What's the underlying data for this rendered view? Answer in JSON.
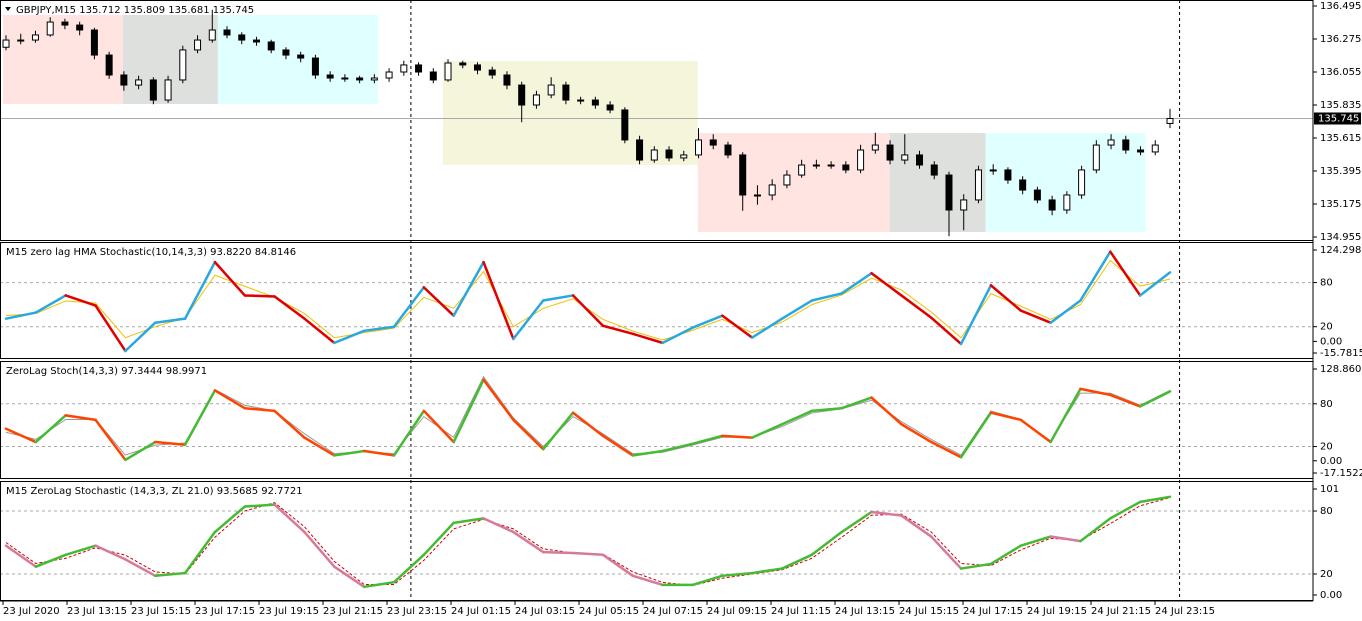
{
  "chart_data": [
    {
      "type": "candlestick",
      "title": "GBPJPY,M15  135.712 135.809 135.681 135.745",
      "open": [
        136.22,
        136.268,
        136.268,
        136.302,
        136.388,
        136.368,
        136.335,
        136.168,
        136.035,
        135.968,
        136.002,
        135.868,
        136.002,
        136.202,
        136.268,
        136.335,
        136.302,
        136.268,
        136.255,
        136.202,
        136.168,
        136.148,
        136.035,
        136.015,
        136.015,
        136.002,
        136.015,
        136.055,
        136.102,
        136.055,
        136.002,
        136.115,
        136.102,
        136.068,
        136.035,
        135.968,
        135.835,
        135.902,
        135.968,
        135.868,
        135.868,
        135.835,
        135.802,
        135.602,
        135.468,
        135.535,
        135.482,
        135.502,
        135.602,
        135.568,
        135.502,
        135.235,
        135.235,
        135.302,
        135.368,
        135.435,
        135.435,
        135.435,
        135.402,
        135.535,
        135.568,
        135.468,
        135.502,
        135.435,
        135.368,
        135.135,
        135.202,
        135.402,
        135.402,
        135.335,
        135.268,
        135.202,
        135.135,
        135.235,
        135.402,
        135.568,
        135.602,
        135.535,
        135.522,
        135.712
      ],
      "high": [
        136.3,
        136.31,
        136.33,
        136.42,
        136.41,
        136.39,
        136.35,
        136.19,
        136.06,
        136.03,
        136.02,
        136.03,
        136.23,
        136.3,
        136.47,
        136.36,
        136.32,
        136.29,
        136.27,
        136.22,
        136.19,
        136.17,
        136.06,
        136.04,
        136.03,
        136.04,
        136.08,
        136.13,
        136.12,
        136.08,
        136.14,
        136.13,
        136.12,
        136.09,
        136.06,
        135.99,
        135.93,
        136.02,
        135.99,
        135.89,
        135.89,
        135.86,
        135.82,
        135.63,
        135.56,
        135.56,
        135.53,
        135.68,
        135.64,
        135.59,
        135.52,
        135.3,
        135.34,
        135.4,
        135.47,
        135.47,
        135.46,
        135.46,
        135.57,
        135.65,
        135.6,
        135.64,
        135.53,
        135.46,
        135.39,
        135.24,
        135.43,
        135.44,
        135.42,
        135.36,
        135.29,
        135.23,
        135.26,
        135.43,
        135.6,
        135.64,
        135.63,
        135.56,
        135.6,
        135.809
      ],
      "low": [
        136.2,
        136.24,
        136.25,
        136.29,
        136.34,
        136.3,
        136.14,
        136.01,
        135.93,
        135.94,
        135.84,
        135.85,
        135.98,
        136.18,
        136.25,
        136.28,
        136.24,
        136.23,
        136.18,
        136.14,
        136.12,
        136.01,
        135.99,
        135.99,
        135.98,
        135.98,
        135.99,
        136.03,
        136.03,
        135.98,
        135.99,
        136.08,
        136.04,
        136.01,
        135.94,
        135.72,
        135.81,
        135.88,
        135.84,
        135.84,
        135.81,
        135.78,
        135.58,
        135.44,
        135.45,
        135.46,
        135.46,
        135.48,
        135.54,
        135.48,
        135.13,
        135.17,
        135.2,
        135.28,
        135.35,
        135.41,
        135.41,
        135.38,
        135.38,
        135.51,
        135.44,
        135.44,
        135.41,
        135.34,
        134.96,
        135.0,
        135.18,
        135.37,
        135.31,
        135.24,
        135.18,
        135.1,
        135.11,
        135.21,
        135.38,
        135.54,
        135.51,
        135.5,
        135.5,
        135.681
      ],
      "close": [
        136.268,
        136.268,
        136.302,
        136.388,
        136.368,
        136.335,
        136.168,
        136.035,
        135.968,
        136.002,
        135.868,
        136.002,
        136.202,
        136.268,
        136.335,
        136.302,
        136.268,
        136.255,
        136.202,
        136.168,
        136.148,
        136.035,
        136.015,
        136.015,
        136.002,
        136.015,
        136.055,
        136.102,
        136.055,
        136.002,
        136.115,
        136.102,
        136.068,
        136.035,
        135.968,
        135.835,
        135.902,
        135.968,
        135.868,
        135.868,
        135.835,
        135.802,
        135.602,
        135.468,
        135.535,
        135.482,
        135.502,
        135.602,
        135.568,
        135.502,
        135.235,
        135.235,
        135.302,
        135.368,
        135.435,
        135.435,
        135.435,
        135.402,
        135.535,
        135.568,
        135.468,
        135.502,
        135.435,
        135.368,
        135.135,
        135.202,
        135.402,
        135.402,
        135.335,
        135.268,
        135.202,
        135.135,
        135.235,
        135.402,
        135.568,
        135.602,
        135.535,
        135.522,
        135.568,
        135.745
      ],
      "ylim": [
        134.955,
        136.495
      ],
      "yticks": [
        136.495,
        136.275,
        136.055,
        135.835,
        135.615,
        135.395,
        135.175,
        134.955
      ],
      "last_price": 135.745,
      "boxes": [
        {
          "x": [
            -0.2,
            7.94
          ],
          "high": 136.435,
          "low": 135.842,
          "color": "#ffe4e1"
        },
        {
          "x": [
            7.94,
            14.38
          ],
          "high": 136.435,
          "low": 135.842,
          "color": "#dde0dd"
        },
        {
          "x": [
            14.38,
            25.24
          ],
          "high": 136.435,
          "low": 135.842,
          "color": "#e0ffff"
        },
        {
          "x": [
            29.65,
            46.95
          ],
          "high": 136.128,
          "low": 135.435,
          "color": "#f5f5dc"
        },
        {
          "x": [
            46.95,
            59.97
          ],
          "high": 135.648,
          "low": 134.988,
          "color": "#ffe4e1"
        },
        {
          "x": [
            59.97,
            66.49
          ],
          "high": 135.648,
          "low": 134.988,
          "color": "#dde0dd"
        },
        {
          "x": [
            66.49,
            77.34
          ],
          "high": 135.648,
          "low": 134.988,
          "color": "#e0ffff"
        }
      ],
      "vlines": [
        27.48,
        79.65
      ],
      "x_tick_labels": [
        "23 Jul 2020",
        "23 Jul 13:15",
        "23 Jul 15:15",
        "23 Jul 17:15",
        "23 Jul 19:15",
        "23 Jul 21:15",
        "23 Jul 23:15",
        "24 Jul 01:15",
        "24 Jul 03:15",
        "24 Jul 05:15",
        "24 Jul 07:15",
        "24 Jul 09:15",
        "24 Jul 11:15",
        "24 Jul 13:15",
        "24 Jul 15:15",
        "24 Jul 17:15",
        "24 Jul 19:15",
        "24 Jul 21:15",
        "24 Jul 23:15"
      ]
    },
    {
      "type": "line",
      "title": "M15 zero lag HMA Stochastic(10,14,3,3) 93.8220 84.8146",
      "ylim": [
        -15.7815,
        124.2988
      ],
      "yticks": [
        124.2988,
        80,
        20,
        {
          "value": 0,
          "label": "0.00"
        },
        -15.7815
      ],
      "levels": [
        80,
        20
      ],
      "main": {
        "color_up": "#29a8e0",
        "color_down": "#e00000",
        "values": [
          30.9,
          39.2,
          62.5,
          48.8,
          -13.0,
          25.4,
          30.9,
          107.8,
          62.5,
          61.1,
          30.9,
          -2.0,
          14.4,
          19.9,
          73.5,
          35.0,
          107.8,
          3.4,
          55.6,
          62.5,
          21.3,
          10.3,
          -2.0,
          18.6,
          35.0,
          5.2,
          30.9,
          55.6,
          65.2,
          92.7,
          62.5,
          32.3,
          -3.4,
          76.2,
          41.9,
          25.4,
          55.6,
          122,
          62.5,
          93.822
        ]
      },
      "signal": {
        "color": "#f0c000",
        "dashed": false,
        "values": [
          35,
          38,
          55,
          52,
          5,
          20,
          32,
          90,
          75,
          60,
          38,
          5,
          12,
          18,
          60,
          45,
          95,
          20,
          45,
          58,
          30,
          14,
          2,
          15,
          30,
          12,
          26,
          50,
          63,
          86,
          70,
          40,
          5,
          65,
          48,
          30,
          50,
          110,
          75,
          84.8146
        ]
      }
    },
    {
      "type": "line",
      "title": "ZeroLag Stoch(14,3,3) 97.3444 98.9971",
      "ylim": [
        -17.1522,
        128.8606
      ],
      "yticks": [
        128.8606,
        80,
        20,
        {
          "value": 0,
          "label": "0.00"
        },
        -17.1522
      ],
      "levels": [
        80,
        20
      ],
      "main": {
        "color_up": "#44bb33",
        "color_down": "#ff4400",
        "values": [
          45,
          26.3,
          63.8,
          57.5,
          1.3,
          26.3,
          22.5,
          98.8,
          73.8,
          70,
          32.5,
          7.5,
          13.8,
          7.5,
          70,
          26.3,
          113.8,
          57.5,
          16.3,
          67.5,
          35,
          7.5,
          13.8,
          23.8,
          35,
          32.5,
          51.3,
          70,
          73.8,
          88.8,
          51.3,
          26.3,
          5,
          67.5,
          57.5,
          26.3,
          101,
          92.5,
          76.3,
          97.3444
        ]
      },
      "signal": {
        "color": "#999999",
        "dashed": false,
        "values": [
          40,
          30,
          58,
          58,
          8,
          22,
          25,
          100,
          78,
          70,
          38,
          10,
          13,
          10,
          62,
          33,
          118,
          60,
          20,
          62,
          38,
          10,
          12,
          22,
          33,
          33,
          48,
          67,
          73,
          85,
          55,
          30,
          8,
          70,
          58,
          28,
          95,
          95,
          78,
          98.9971
        ]
      }
    },
    {
      "type": "line",
      "title": "M15 ZeroLag Stochastic (14,3,3, ZL 21.0) 93.5685 92.7721",
      "ylim": [
        0,
        101
      ],
      "yticks": [
        101,
        80,
        20,
        {
          "value": 0,
          "label": "0.00"
        }
      ],
      "levels": [
        80,
        20
      ],
      "main": {
        "color_up": "#44bb33",
        "color_down": "#d67a9a",
        "values": [
          47,
          27,
          38.3,
          47,
          33.9,
          18.3,
          20.9,
          60,
          84.3,
          86.1,
          60,
          27,
          7.8,
          12.2,
          38.3,
          68.7,
          73,
          60,
          40.9,
          40,
          38.3,
          18.3,
          9.6,
          9.6,
          18.3,
          20.9,
          25.2,
          38.3,
          60,
          79.1,
          75.7,
          55.7,
          25.2,
          29.6,
          47,
          55.7,
          51.3,
          73,
          88.7,
          93.5685
        ]
      },
      "signal": {
        "color": "#cc0000",
        "dashed": true,
        "values": [
          50,
          30,
          35,
          45,
          38,
          22,
          20,
          55,
          80,
          88,
          65,
          32,
          10,
          10,
          33,
          63,
          72,
          63,
          44,
          40,
          39,
          22,
          12,
          9,
          16,
          20,
          24,
          35,
          55,
          76,
          77,
          60,
          30,
          28,
          43,
          54,
          52,
          68,
          85,
          92.7721
        ]
      }
    }
  ]
}
